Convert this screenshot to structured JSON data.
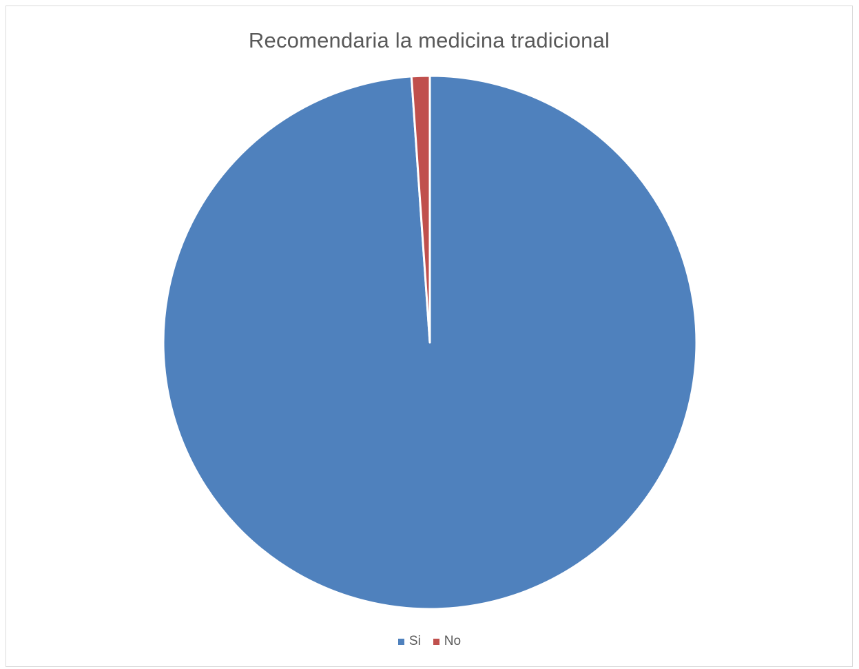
{
  "chart_data": {
    "type": "pie",
    "title": "Recomendaria la medicina tradicional",
    "categories": [
      "Si",
      "No"
    ],
    "values": [
      98.9,
      1.1
    ],
    "colors": [
      "#4f81bd",
      "#c0504d"
    ],
    "legend_position": "bottom"
  }
}
